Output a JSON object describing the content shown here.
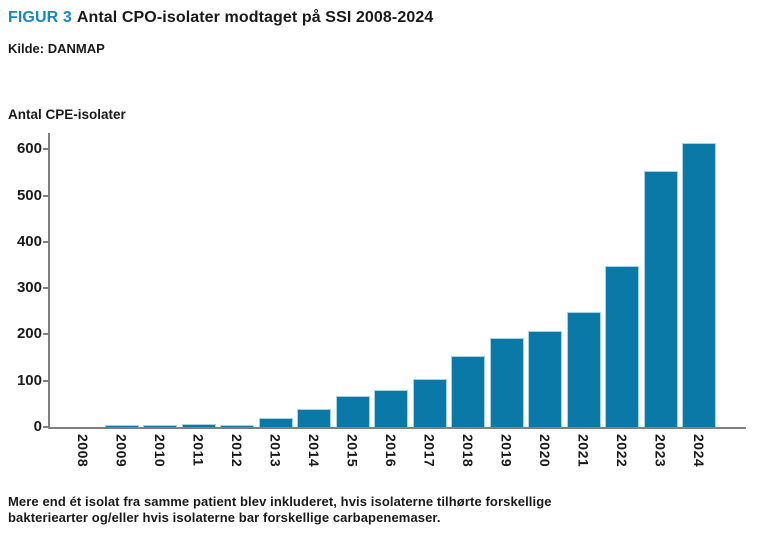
{
  "header": {
    "figure_label": "FIGUR 3",
    "title": "Antal CPO-isolater modtaget på SSI 2008-2024",
    "source": "Kilde: DANMAP"
  },
  "chart_data": {
    "type": "bar",
    "title": "Antal CPO-isolater modtaget på SSI 2008-2024",
    "xlabel": "",
    "ylabel": "Antal CPE-isolater",
    "categories": [
      "2008",
      "2009",
      "2010",
      "2011",
      "2012",
      "2013",
      "2014",
      "2015",
      "2016",
      "2017",
      "2018",
      "2019",
      "2020",
      "2021",
      "2022",
      "2023",
      "2024"
    ],
    "values": [
      0,
      5,
      4,
      7,
      5,
      20,
      38,
      66,
      80,
      103,
      154,
      192,
      208,
      248,
      347,
      553,
      614
    ],
    "ylim": [
      0,
      635
    ],
    "yticks": [
      0,
      100,
      200,
      300,
      400,
      500,
      600
    ],
    "grid": false,
    "legend": null,
    "bar_color": "#0b79a8",
    "bar_edge_color": "#a9d2e2",
    "axis_color": "#7f7f7f"
  },
  "footnote": {
    "line1": "Mere end ét isolat fra samme patient blev inkluderet, hvis isolaterne tilhørte forskellige",
    "line2": "bakteriearter og/eller hvis isolaterne bar forskellige carbapenemaser."
  },
  "colors": {
    "accent_blue": "#1a87c5",
    "bar_fill": "#0b79a8",
    "axis_gray": "#7f7f7f",
    "text": "#1a1a1a"
  }
}
